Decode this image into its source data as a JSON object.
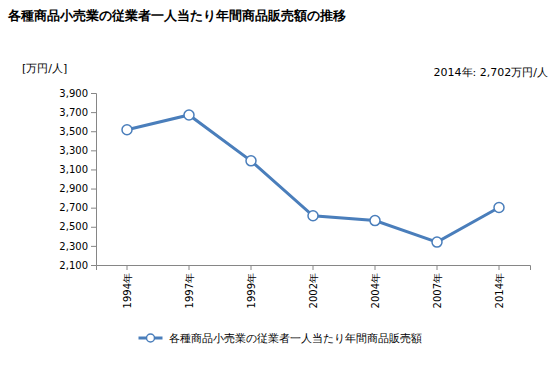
{
  "chart_data": {
    "type": "line",
    "title": "各種商品小売業の従業者一人当たり年間商品販売額の推移",
    "y_label": "[万円/人]",
    "annotations": [
      "2014年: 2,702万円/人"
    ],
    "categories": [
      "1994年",
      "1997年",
      "1999年",
      "2002年",
      "2004年",
      "2007年",
      "2014年"
    ],
    "series": [
      {
        "name": "各種商品小売業の従業者一人当たり年間商品販売額",
        "color": "#4a7ebb",
        "marker": "circle",
        "values": [
          3515,
          3670,
          3190,
          2615,
          2565,
          2340,
          2702
        ]
      }
    ],
    "ylim": [
      2100,
      3900
    ],
    "yticks": [
      {
        "value": 2100,
        "label": "2,100"
      },
      {
        "value": 2300,
        "label": "2,300"
      },
      {
        "value": 2500,
        "label": "2,500"
      },
      {
        "value": 2700,
        "label": "2,700"
      },
      {
        "value": 2900,
        "label": "2,900"
      },
      {
        "value": 3100,
        "label": "3,100"
      },
      {
        "value": 3300,
        "label": "3,300"
      },
      {
        "value": 3500,
        "label": "3,500"
      },
      {
        "value": 3700,
        "label": "3,700"
      },
      {
        "value": 3900,
        "label": "3,900"
      }
    ],
    "grid": false,
    "legend": "bottom"
  }
}
